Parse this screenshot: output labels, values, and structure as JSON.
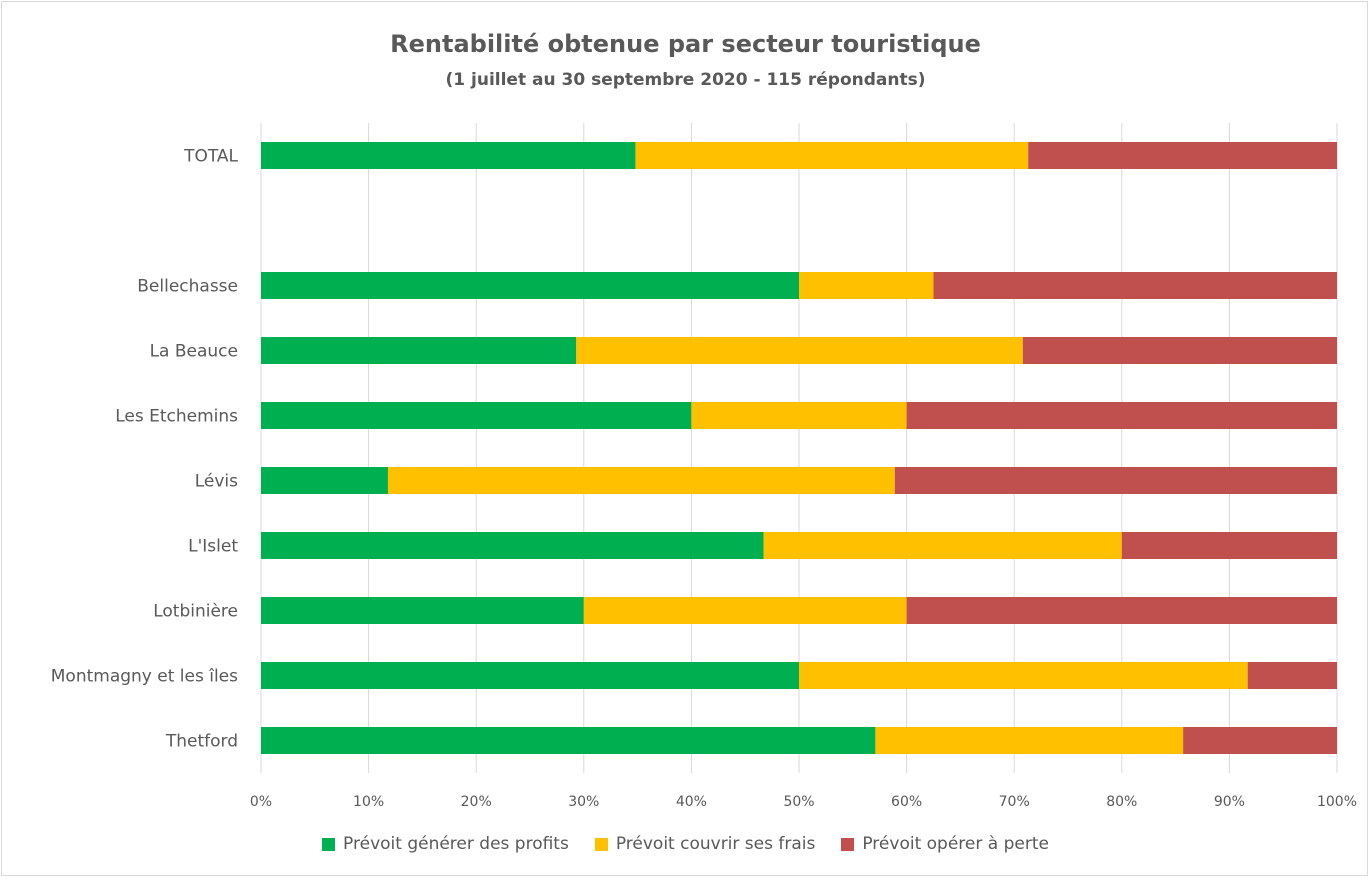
{
  "chart_data": {
    "type": "bar",
    "orientation": "horizontal",
    "stacked": "percent",
    "title": "Rentabilité obtenue par secteur touristique",
    "subtitle": "(1 juillet au 30 septembre 2020 - 115 répondants)",
    "categories": [
      "TOTAL",
      "",
      "Bellechasse",
      "La Beauce",
      "Les Etchemins",
      "Lévis",
      "L'Islet",
      "Lotbinière",
      "Montmagny et les îles",
      "Thetford"
    ],
    "series": [
      {
        "name": "Prévoit générer des profits",
        "color": "#00b050",
        "values": [
          34.8,
          null,
          50.0,
          29.3,
          40.0,
          11.8,
          46.7,
          30.0,
          50.0,
          57.1
        ]
      },
      {
        "name": "Prévoit couvrir ses frais",
        "color": "#ffc000",
        "values": [
          36.5,
          null,
          12.5,
          41.5,
          20.0,
          47.1,
          33.3,
          30.0,
          41.7,
          28.6
        ]
      },
      {
        "name": "Prévoit opérer à perte",
        "color": "#c0504d",
        "values": [
          28.7,
          null,
          37.5,
          29.2,
          40.0,
          41.1,
          20.0,
          40.0,
          8.3,
          14.3
        ]
      }
    ],
    "xlim": [
      0,
      100
    ],
    "xticks": [
      "0%",
      "10%",
      "20%",
      "30%",
      "40%",
      "50%",
      "60%",
      "70%",
      "80%",
      "90%",
      "100%"
    ],
    "grid": true,
    "legend_position": "bottom"
  }
}
